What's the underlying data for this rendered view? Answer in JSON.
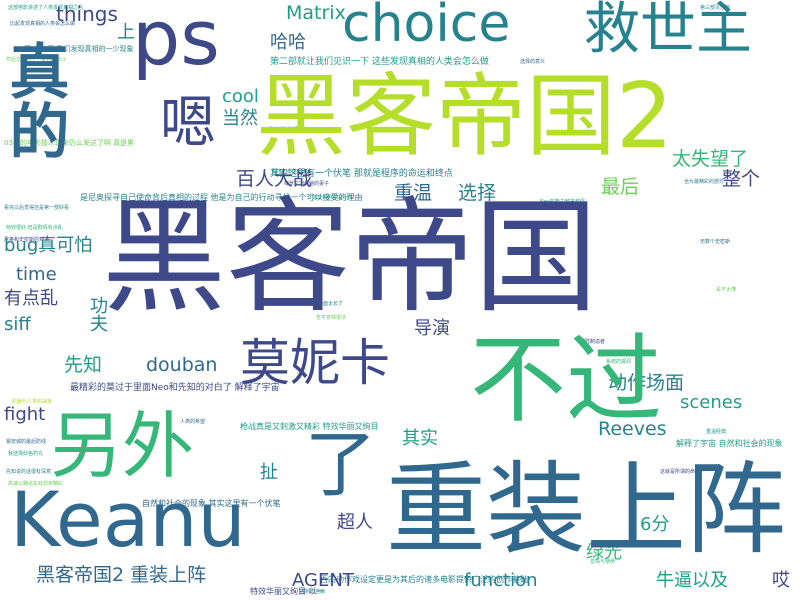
{
  "words": {
    "heike_big": "黑客帝国",
    "heike2": "黑客帝国2",
    "buguo": "不过",
    "lingwai": "另外",
    "keanu": "Keanu",
    "zhuangshang": "重装上阵",
    "ps": "ps",
    "choice": "choice",
    "jiushizhu": "救世主",
    "zhende": "真的",
    "en": "嗯",
    "monika": "莫妮卡",
    "le": "了",
    "matrix": "Matrix",
    "things": "things",
    "shang": "上",
    "haha": "哈哈",
    "cool": "cool",
    "dangran": "当然",
    "baiwan": "百人大战",
    "chongwen": "重温",
    "xuanze": "选择",
    "zuihou": "最后",
    "taishiwang": "太失望了",
    "zhengge": "整个",
    "bug": "bug真可怕",
    "time": "time",
    "youdianluan": "有点乱",
    "siff": "siff",
    "gongfu": "功夫",
    "daoyan": "导演",
    "xianzhi": "先知",
    "douban": "douban",
    "dongzuo": "动作场面",
    "scenes": "scenes",
    "fight": "fight",
    "reeves": "Reeves",
    "qishi": "其实",
    "che": "扯",
    "chaoren": "超人",
    "liufen": "6分",
    "heike2zz": "黑客帝国2 重装上阵",
    "agent": "AGENT",
    "function": "function",
    "lvguang": "绿光",
    "niubi": "牛逼以及",
    "ai": "哎",
    "sentence1": "第二部就让我们见识一下 这些发现真相的人类会怎么做",
    "sentence2": "其实这里有一个伏笔 那就是程序的命运和终点",
    "sentence3": "最精彩的莫过于里面Neo和先知的对白了 解释了宇宙",
    "sentence4": "是尼奥探寻自己使命背后真相的过程 他是为自己的行动寻找一个可以接受的理由",
    "sentence5": "枪战真是又刺激又精彩 特效华丽又绚目",
    "sentence6": "自然和社会的现象 其实这里有一个伏笔",
    "sentence7": "百的动作戏设定更是为其后的诸多电影提供广泛的创作基础",
    "sentence8": "特效华丽又绚目 以一",
    "sentence9": "解释了宇宙 自然和社会的现象",
    "sentence10": "03年的电影技术现来仍么发达了啊 真是累",
    "sentence11": "第一部 不 我们发现真相的一少现象",
    "tiny": [
      "这部电影讲述了人类发现真相之后",
      "比起发现真相的人类会怎么做",
      "然后又开始了一系列的战斗",
      "看完以后觉得还是第一部好看",
      "特效很好 但是剧情有点乱",
      "尼奥和史密斯的对决",
      "机器与人类的战争",
      "锡安城的最后防线",
      "我选择红色药丸",
      "先知说的话很有深意",
      "高速公路追车戏非常精彩",
      "墨菲斯和崔妮蒂",
      "程序的命运和终点",
      "梅罗文加和他的妻子",
      "建筑师的那段对白",
      "打斗场面太长了",
      "哲学意味很浓",
      "选择的意义",
      "Neo的能力越来越强",
      "钥匙制造者",
      "系统的漏洞",
      "全片最精彩的部分",
      "无数个史密斯",
      "看不太懂",
      "重温经典",
      "这就是所谓的命运",
      "爱情与使命",
      "第三部见分晓",
      "人类的希望",
      "控制与自由"
    ]
  }
}
